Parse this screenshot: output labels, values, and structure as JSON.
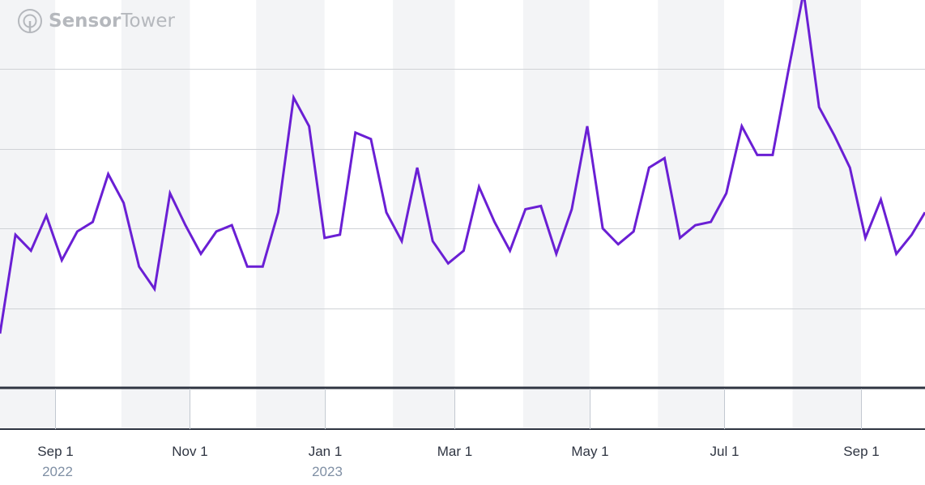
{
  "brand": {
    "name_part1": "Sensor",
    "name_part2": "Tower",
    "logo_color": "#b5b8bd"
  },
  "colors": {
    "line": "#6a1fd4",
    "band": "#f3f4f6",
    "grid": "#cfd2d6",
    "axis": "#2f3542",
    "tick_label": "#2f3542",
    "year_label": "#7f8fa4"
  },
  "chart_data": {
    "type": "line",
    "title": "",
    "xlabel": "",
    "ylabel": "",
    "grid": true,
    "y_tick_labels_shown": false,
    "x_tick_labels": [
      "Sep 1",
      "Nov 1",
      "Jan 1",
      "Mar 1",
      "May 1",
      "Jul 1",
      "Sep 1"
    ],
    "x_year_labels": [
      {
        "under": "Sep 1",
        "text": "2022"
      },
      {
        "under": "Jan 1",
        "text": "2023"
      }
    ],
    "x_range": [
      "2022-08-07",
      "2023-09-30"
    ],
    "ylim": [
      0,
      100
    ],
    "month_bands": [
      [
        "2022-08-01",
        "2022-09-01"
      ],
      [
        "2022-10-01",
        "2022-11-01"
      ],
      [
        "2022-12-01",
        "2023-01-01"
      ],
      [
        "2023-02-01",
        "2023-03-01"
      ],
      [
        "2023-04-01",
        "2023-05-01"
      ],
      [
        "2023-06-01",
        "2023-07-01"
      ],
      [
        "2023-08-01",
        "2023-09-01"
      ]
    ],
    "series": [
      {
        "x": [
          "2022-08-07",
          "2022-08-14",
          "2022-08-21",
          "2022-08-28",
          "2022-09-04",
          "2022-09-11",
          "2022-09-18",
          "2022-09-25",
          "2022-10-02",
          "2022-10-09",
          "2022-10-16",
          "2022-10-23",
          "2022-10-30",
          "2022-11-06",
          "2022-11-13",
          "2022-11-20",
          "2022-11-27",
          "2022-12-04",
          "2022-12-11",
          "2022-12-18",
          "2022-12-25",
          "2023-01-01",
          "2023-01-08",
          "2023-01-15",
          "2023-01-22",
          "2023-01-29",
          "2023-02-05",
          "2023-02-12",
          "2023-02-19",
          "2023-02-26",
          "2023-03-05",
          "2023-03-12",
          "2023-03-19",
          "2023-03-26",
          "2023-04-02",
          "2023-04-09",
          "2023-04-16",
          "2023-04-23",
          "2023-04-30",
          "2023-05-07",
          "2023-05-14",
          "2023-05-21",
          "2023-05-28",
          "2023-06-04",
          "2023-06-11",
          "2023-06-18",
          "2023-06-25",
          "2023-07-02",
          "2023-07-09",
          "2023-07-16",
          "2023-07-23",
          "2023-07-30",
          "2023-08-06",
          "2023-08-13",
          "2023-08-20",
          "2023-08-27",
          "2023-09-03",
          "2023-09-10",
          "2023-09-17",
          "2023-09-24",
          "2023-09-30"
        ],
        "values": [
          17,
          48,
          43,
          54,
          40,
          49,
          52,
          67,
          58,
          38,
          31,
          61,
          51,
          42,
          49,
          51,
          38,
          38,
          55,
          91,
          82,
          47,
          48,
          80,
          78,
          55,
          46,
          69,
          46,
          39,
          43,
          63,
          52,
          43,
          56,
          57,
          42,
          56,
          82,
          50,
          45,
          49,
          69,
          72,
          47,
          51,
          52,
          61,
          82,
          73,
          73,
          99,
          124,
          88,
          79,
          69,
          47,
          59,
          42,
          48,
          55
        ]
      }
    ]
  }
}
